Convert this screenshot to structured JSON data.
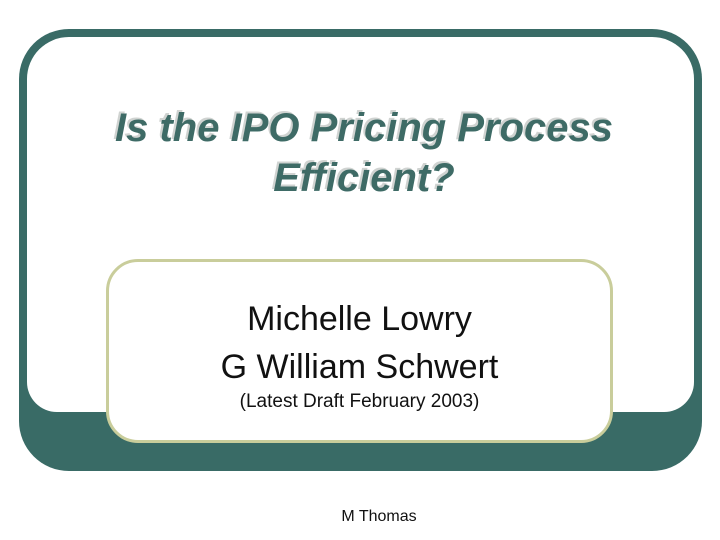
{
  "slide": {
    "title": {
      "line1": "Is the IPO Pricing Process",
      "line2": "Efficient?"
    },
    "authors": {
      "line1": "Michelle Lowry",
      "line2": "G William Schwert",
      "line3": "(Latest Draft February 2003)"
    },
    "footer": "M Thomas",
    "colors": {
      "teal": "#396B66",
      "title_text": "#3E6B66",
      "box_border": "#C9CD9B",
      "background": "#FFFFFF",
      "body_text": "#111111"
    }
  }
}
